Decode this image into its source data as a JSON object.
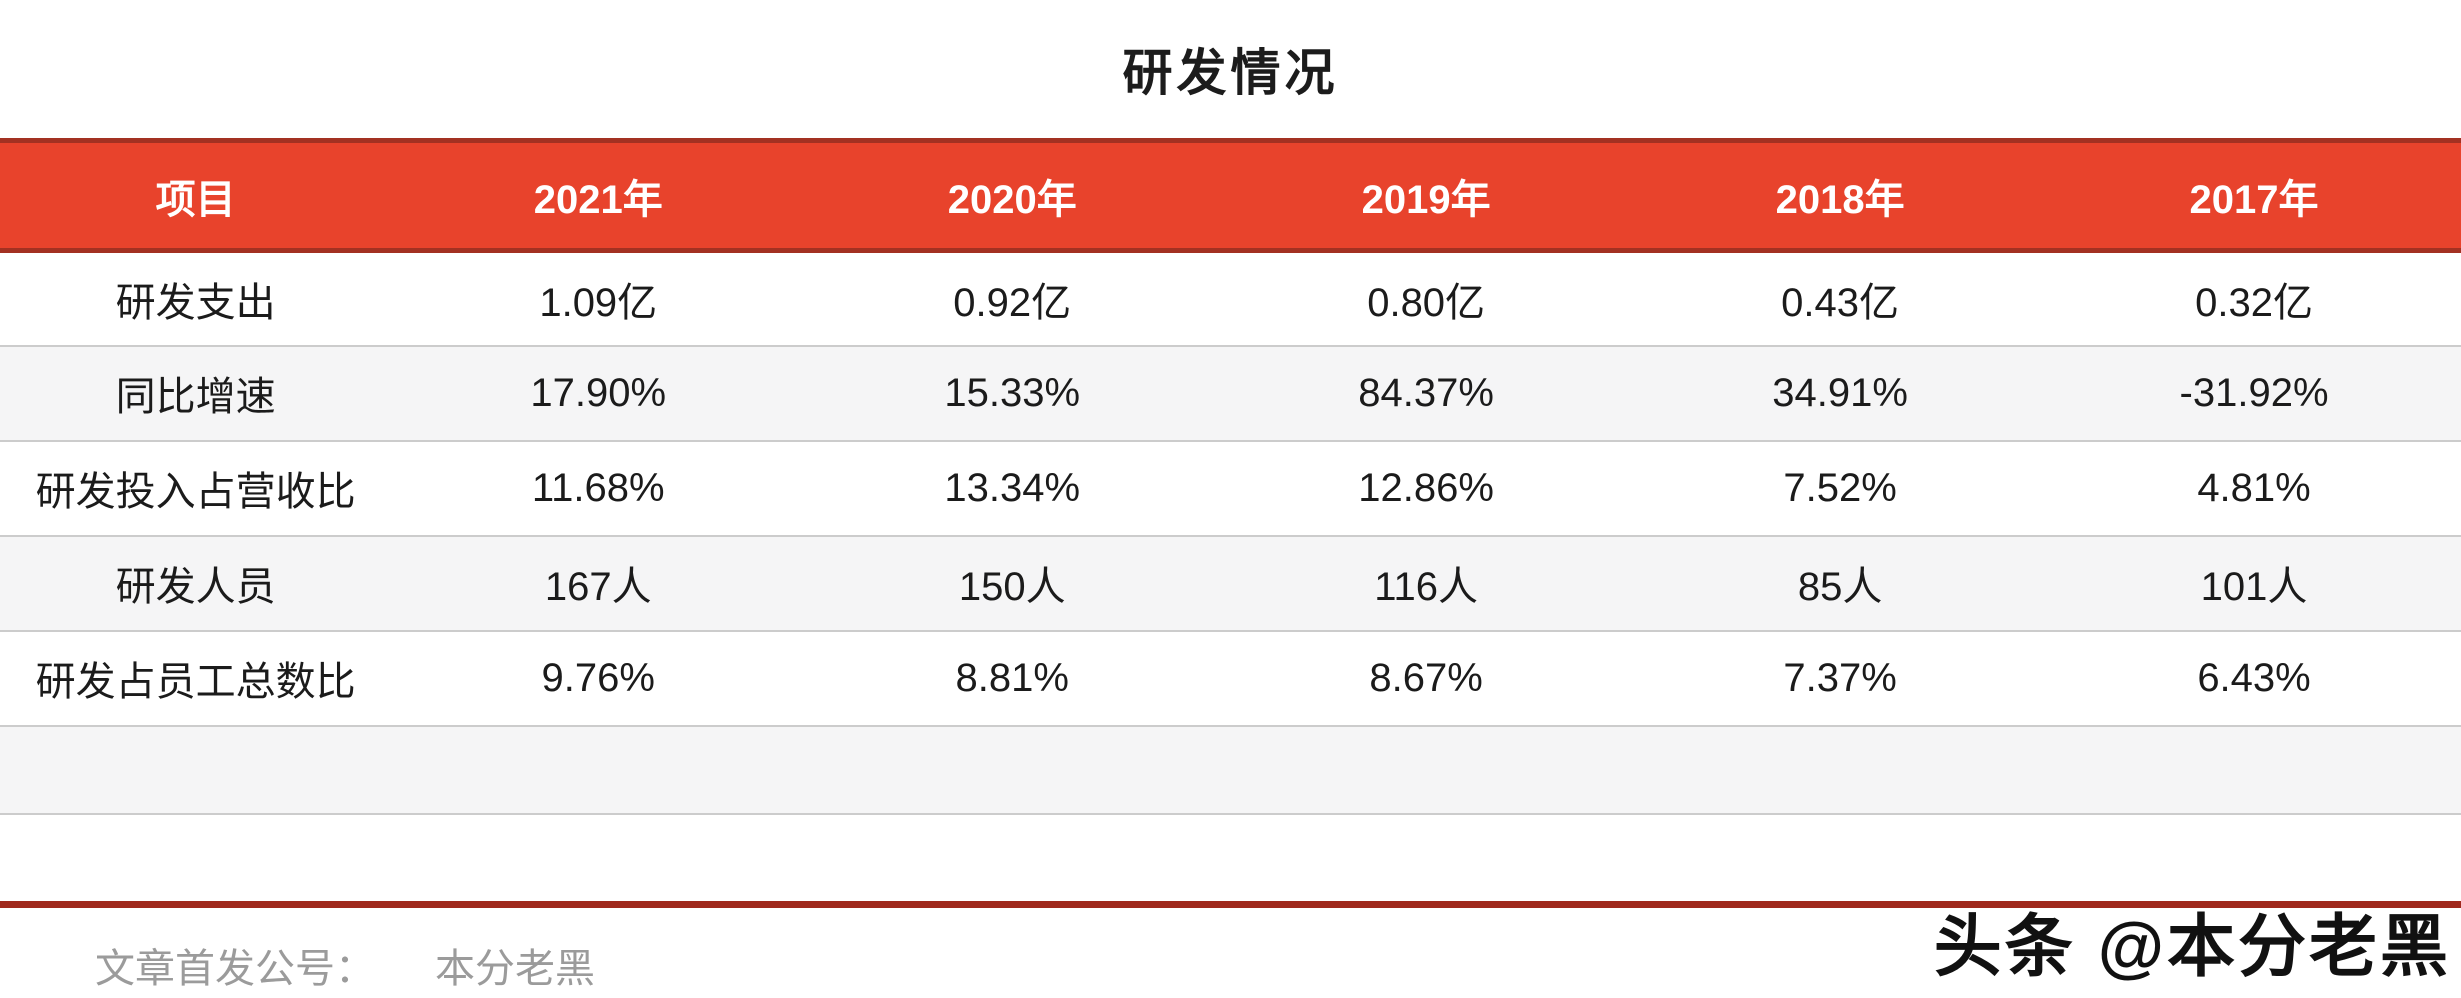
{
  "page": {
    "title": "研发情况",
    "accent_color": "#E8432C",
    "accent_dark": "#A33122",
    "alt_row_bg": "#F5F5F6",
    "divider_color": "#CCCCCC"
  },
  "table": {
    "columns": [
      "项目",
      "2021年",
      "2020年",
      "2019年",
      "2018年",
      "2017年"
    ],
    "rows": [
      {
        "label": "研发支出",
        "values": [
          "1.09亿",
          "0.92亿",
          "0.80亿",
          "0.43亿",
          "0.32亿"
        ]
      },
      {
        "label": "同比增速",
        "values": [
          "17.90%",
          "15.33%",
          "84.37%",
          "34.91%",
          "-31.92%"
        ]
      },
      {
        "label": "研发投入占营收比",
        "values": [
          "11.68%",
          "13.34%",
          "12.86%",
          "7.52%",
          "4.81%"
        ]
      },
      {
        "label": "研发人员",
        "values": [
          "167人",
          "150人",
          "116人",
          "85人",
          "101人"
        ]
      },
      {
        "label": "研发占员工总数比",
        "values": [
          "9.76%",
          "8.81%",
          "8.67%",
          "7.37%",
          "6.43%"
        ]
      }
    ]
  },
  "footer": {
    "source_label": "文章首发公号：",
    "account_name": "本分老黑",
    "watermark": "头条 @本分老黑"
  },
  "chart_data": {
    "type": "table",
    "title": "研发情况",
    "categories": [
      "2021年",
      "2020年",
      "2019年",
      "2018年",
      "2017年"
    ],
    "series": [
      {
        "name": "研发支出(亿)",
        "values": [
          1.09,
          0.92,
          0.8,
          0.43,
          0.32
        ]
      },
      {
        "name": "同比增速(%)",
        "values": [
          17.9,
          15.33,
          84.37,
          34.91,
          -31.92
        ]
      },
      {
        "name": "研发投入占营收比(%)",
        "values": [
          11.68,
          13.34,
          12.86,
          7.52,
          4.81
        ]
      },
      {
        "name": "研发人员(人)",
        "values": [
          167,
          150,
          116,
          85,
          101
        ]
      },
      {
        "name": "研发占员工总数比(%)",
        "values": [
          9.76,
          8.81,
          8.67,
          7.37,
          6.43
        ]
      }
    ],
    "legend_position": "none",
    "grid": "horizontal-row-dividers"
  }
}
